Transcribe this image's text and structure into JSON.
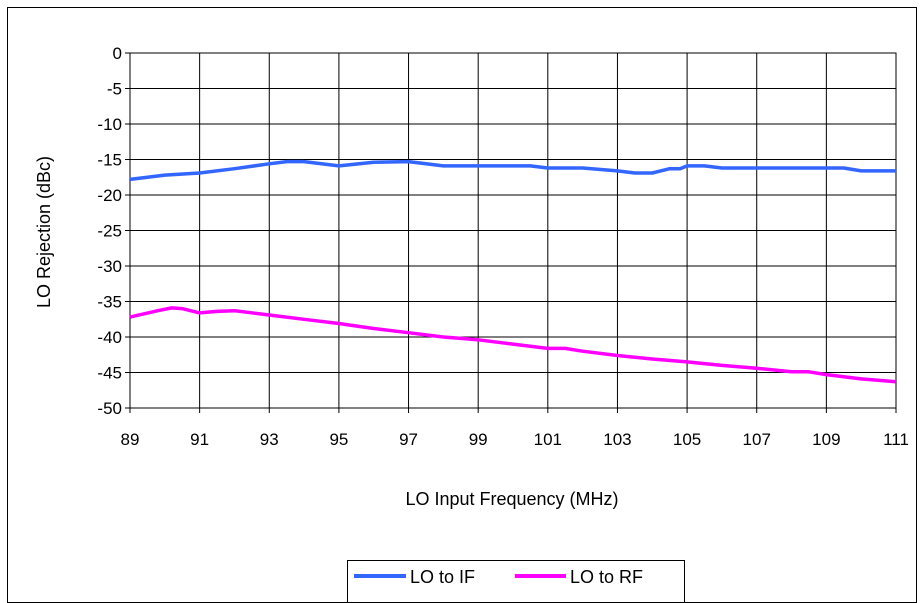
{
  "chart_data": {
    "type": "line",
    "title": "",
    "xlabel": "LO Input Frequency (MHz)",
    "ylabel": "LO Rejection (dBc)",
    "xlim": [
      89,
      111
    ],
    "ylim": [
      -50,
      0
    ],
    "x_ticks": [
      "89",
      "91",
      "93",
      "95",
      "97",
      "99",
      "101",
      "103",
      "105",
      "107",
      "109",
      "111"
    ],
    "y_ticks": [
      "0",
      "-5",
      "-10",
      "-15",
      "-20",
      "-25",
      "-30",
      "-35",
      "-40",
      "-45",
      "-50"
    ],
    "grid": true,
    "legend_position": "bottom",
    "series": [
      {
        "name": "LO to IF",
        "color": "#3366ff",
        "points": [
          [
            89,
            -17.8
          ],
          [
            90,
            -17.2
          ],
          [
            91,
            -16.9
          ],
          [
            92,
            -16.3
          ],
          [
            93,
            -15.6
          ],
          [
            93.5,
            -15.3
          ],
          [
            94,
            -15.3
          ],
          [
            95,
            -15.9
          ],
          [
            96,
            -15.4
          ],
          [
            97,
            -15.3
          ],
          [
            98,
            -15.9
          ],
          [
            99,
            -15.9
          ],
          [
            100,
            -15.9
          ],
          [
            100.5,
            -15.9
          ],
          [
            101,
            -16.2
          ],
          [
            102,
            -16.2
          ],
          [
            103,
            -16.6
          ],
          [
            103.5,
            -16.9
          ],
          [
            104,
            -16.9
          ],
          [
            104.5,
            -16.3
          ],
          [
            104.8,
            -16.3
          ],
          [
            105,
            -15.9
          ],
          [
            105.5,
            -15.9
          ],
          [
            106,
            -16.2
          ],
          [
            107,
            -16.2
          ],
          [
            108,
            -16.2
          ],
          [
            109,
            -16.2
          ],
          [
            109.5,
            -16.2
          ],
          [
            110,
            -16.6
          ],
          [
            111,
            -16.6
          ]
        ]
      },
      {
        "name": "LO to RF",
        "color": "#ff00ff",
        "points": [
          [
            89,
            -37.2
          ],
          [
            89.8,
            -36.3
          ],
          [
            90.2,
            -35.9
          ],
          [
            90.5,
            -36.0
          ],
          [
            91,
            -36.6
          ],
          [
            91.5,
            -36.4
          ],
          [
            92,
            -36.3
          ],
          [
            93,
            -36.9
          ],
          [
            94,
            -37.5
          ],
          [
            95,
            -38.1
          ],
          [
            96,
            -38.8
          ],
          [
            97,
            -39.4
          ],
          [
            98,
            -40.0
          ],
          [
            99,
            -40.4
          ],
          [
            100,
            -41.0
          ],
          [
            101,
            -41.6
          ],
          [
            101.5,
            -41.6
          ],
          [
            102,
            -42.0
          ],
          [
            103,
            -42.6
          ],
          [
            104,
            -43.1
          ],
          [
            105,
            -43.5
          ],
          [
            106,
            -44.0
          ],
          [
            107,
            -44.4
          ],
          [
            108,
            -44.9
          ],
          [
            108.5,
            -44.9
          ],
          [
            109,
            -45.3
          ],
          [
            110,
            -45.9
          ],
          [
            111,
            -46.3
          ]
        ]
      }
    ]
  }
}
